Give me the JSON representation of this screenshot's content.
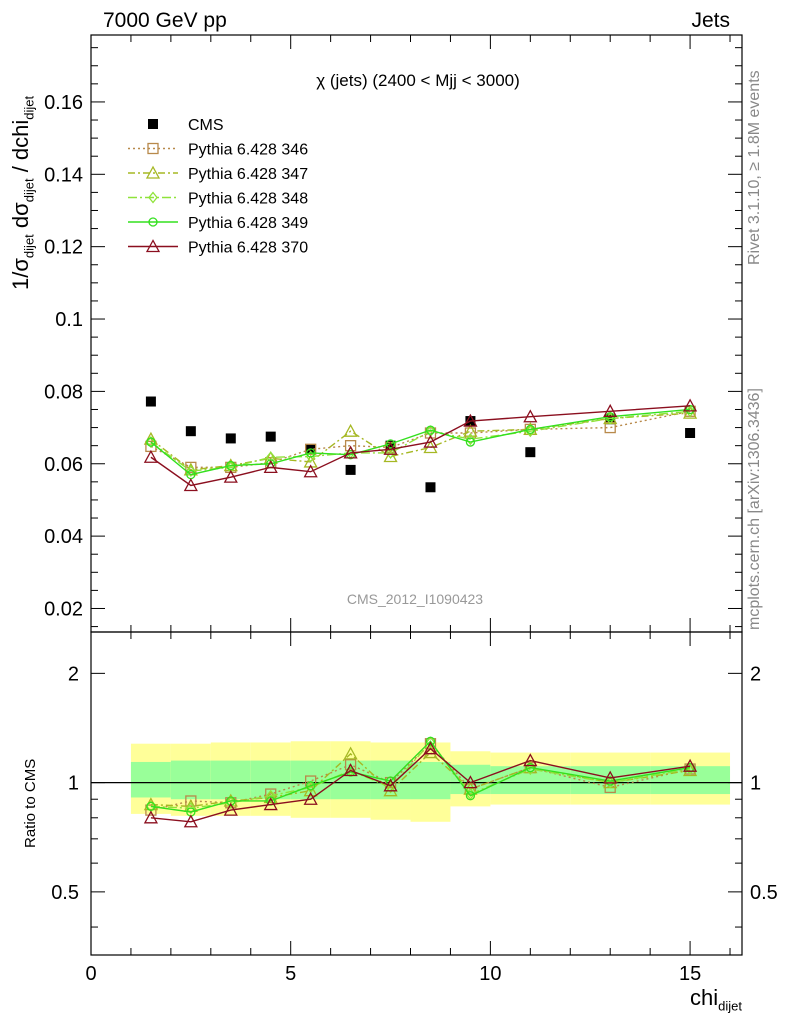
{
  "header": {
    "left": "7000 GeV pp",
    "right": "Jets"
  },
  "side_labels": {
    "rivet": "Rivet 3.1.10, ≥ 1.8M events",
    "url": "mcplots.cern.ch [arXiv:1306.3436]"
  },
  "axes": {
    "ylabel_main_parts": [
      "1/σ",
      "dijet",
      " dσ",
      "dijet",
      " / dchi",
      "dijet"
    ],
    "ylabel_ratio": "Ratio to CMS",
    "xlabel_parts": [
      "chi",
      "dijet"
    ]
  },
  "colors": {
    "CMS": "#000000",
    "p346": "#b8894a",
    "p347": "#a6b824",
    "p348": "#8fe33a",
    "p349": "#33e01e",
    "p370": "#8b0f1f",
    "band_outer": "#ffff99",
    "band_inner": "#99ff99"
  },
  "chart_data": [
    {
      "type": "line",
      "title": "χ (jets) (2400 < Mjj < 3000)",
      "watermark": "CMS_2012_I1090423",
      "xlim": [
        0,
        16.3
      ],
      "ylim": [
        0.0135,
        0.1785
      ],
      "yticks": [
        0.02,
        0.04,
        0.06,
        0.08,
        0.1,
        0.12,
        0.14,
        0.16
      ],
      "ytick_labels": [
        "0.02",
        "0.04",
        "0.06",
        "0.08",
        "0.1",
        "0.12",
        "0.14",
        "0.16"
      ],
      "xticks": [
        0,
        5,
        10,
        15
      ],
      "xtick_labels": [
        "0",
        "5",
        "10",
        "15"
      ],
      "x": [
        1.5,
        2.5,
        3.5,
        4.5,
        5.5,
        6.5,
        7.5,
        8.5,
        9.5,
        11,
        13,
        15
      ],
      "series": [
        {
          "name": "CMS",
          "key": "CMS",
          "style": "data",
          "values": [
            0.0772,
            0.069,
            0.067,
            0.0675,
            0.064,
            0.0583,
            0.065,
            0.0535,
            0.0718,
            0.0632,
            0.0723,
            0.0685
          ]
        },
        {
          "name": "Pythia 6.428 346",
          "key": "p346",
          "marker": "square",
          "dash": "2,3",
          "values": [
            0.0648,
            0.059,
            0.059,
            0.0603,
            0.064,
            0.065,
            0.0645,
            0.0685,
            0.0685,
            0.0695,
            0.07,
            0.0745
          ]
        },
        {
          "name": "Pythia 6.428 347",
          "key": "p347",
          "marker": "triangle",
          "dash": "7,3,2,3",
          "values": [
            0.0668,
            0.0583,
            0.0595,
            0.0615,
            0.0605,
            0.069,
            0.062,
            0.0645,
            0.069,
            0.0695,
            0.0725,
            0.074
          ]
        },
        {
          "name": "Pythia 6.428 348",
          "key": "p348",
          "marker": "diamond",
          "dash": "9,3,2,3",
          "values": [
            0.066,
            0.058,
            0.059,
            0.0618,
            0.062,
            0.063,
            0.063,
            0.069,
            0.0668,
            0.069,
            0.0725,
            0.0745
          ]
        },
        {
          "name": "Pythia 6.428 349",
          "key": "p349",
          "marker": "circle",
          "dash": "",
          "values": [
            0.066,
            0.057,
            0.0595,
            0.06,
            0.063,
            0.0625,
            0.0655,
            0.0693,
            0.066,
            0.0695,
            0.073,
            0.075
          ]
        },
        {
          "name": "Pythia 6.428 370",
          "key": "p370",
          "marker": "triangle",
          "dash": "",
          "values": [
            0.0618,
            0.054,
            0.0563,
            0.059,
            0.0578,
            0.063,
            0.064,
            0.066,
            0.0718,
            0.073,
            0.0745,
            0.076
          ]
        }
      ]
    },
    {
      "type": "line",
      "title": "",
      "ylabel": "Ratio to CMS",
      "xlim": [
        0,
        16.3
      ],
      "ylim": [
        0.335,
        2.6
      ],
      "yscale": "log",
      "yticks": [
        0.5,
        1,
        2
      ],
      "ytick_labels": [
        "0.5",
        "1",
        "2"
      ],
      "xticks": [
        0,
        5,
        10,
        15
      ],
      "xtick_labels": [
        "0",
        "5",
        "10",
        "15"
      ],
      "xlabel": "chi_dijet",
      "x": [
        1.5,
        2.5,
        3.5,
        4.5,
        5.5,
        6.5,
        7.5,
        8.5,
        9.5,
        11,
        13,
        15
      ],
      "bins": [
        [
          1,
          2
        ],
        [
          2,
          3
        ],
        [
          3,
          4
        ],
        [
          4,
          5
        ],
        [
          5,
          6
        ],
        [
          6,
          7
        ],
        [
          7,
          8
        ],
        [
          8,
          9
        ],
        [
          9,
          10
        ],
        [
          10,
          12
        ],
        [
          12,
          14
        ],
        [
          14,
          16
        ]
      ],
      "band_outer": [
        [
          0.82,
          1.28
        ],
        [
          0.81,
          1.28
        ],
        [
          0.81,
          1.29
        ],
        [
          0.81,
          1.29
        ],
        [
          0.8,
          1.3
        ],
        [
          0.8,
          1.3
        ],
        [
          0.79,
          1.29
        ],
        [
          0.78,
          1.29
        ],
        [
          0.86,
          1.22
        ],
        [
          0.87,
          1.21
        ],
        [
          0.87,
          1.21
        ],
        [
          0.87,
          1.21
        ]
      ],
      "band_inner": [
        [
          0.91,
          1.14
        ],
        [
          0.9,
          1.15
        ],
        [
          0.9,
          1.15
        ],
        [
          0.9,
          1.15
        ],
        [
          0.9,
          1.15
        ],
        [
          0.9,
          1.15
        ],
        [
          0.9,
          1.15
        ],
        [
          0.9,
          1.14
        ],
        [
          0.93,
          1.12
        ],
        [
          0.93,
          1.11
        ],
        [
          0.93,
          1.11
        ],
        [
          0.93,
          1.11
        ]
      ],
      "series": [
        {
          "name": "Pythia 6.428 346",
          "key": "p346",
          "marker": "square",
          "dash": "2,3",
          "values": [
            0.84,
            0.89,
            0.88,
            0.93,
            1.01,
            1.12,
            1.0,
            1.28,
            0.96,
            1.1,
            0.97,
            1.09
          ]
        },
        {
          "name": "Pythia 6.428 347",
          "key": "p347",
          "marker": "triangle",
          "dash": "7,3,2,3",
          "values": [
            0.87,
            0.86,
            0.89,
            0.91,
            0.95,
            1.2,
            0.95,
            1.21,
            0.96,
            1.1,
            1.0,
            1.08
          ]
        },
        {
          "name": "Pythia 6.428 348",
          "key": "p348",
          "marker": "diamond",
          "dash": "9,3,2,3",
          "values": [
            0.86,
            0.85,
            0.88,
            0.92,
            0.97,
            1.08,
            0.97,
            1.29,
            0.93,
            1.09,
            1.0,
            1.09
          ]
        },
        {
          "name": "Pythia 6.428 349",
          "key": "p349",
          "marker": "circle",
          "dash": "",
          "values": [
            0.86,
            0.83,
            0.89,
            0.89,
            0.98,
            1.07,
            1.01,
            1.3,
            0.92,
            1.1,
            1.01,
            1.1
          ]
        },
        {
          "name": "Pythia 6.428 370",
          "key": "p370",
          "marker": "triangle",
          "dash": "",
          "values": [
            0.8,
            0.78,
            0.84,
            0.87,
            0.9,
            1.08,
            0.98,
            1.24,
            1.0,
            1.15,
            1.03,
            1.11
          ]
        }
      ]
    }
  ]
}
